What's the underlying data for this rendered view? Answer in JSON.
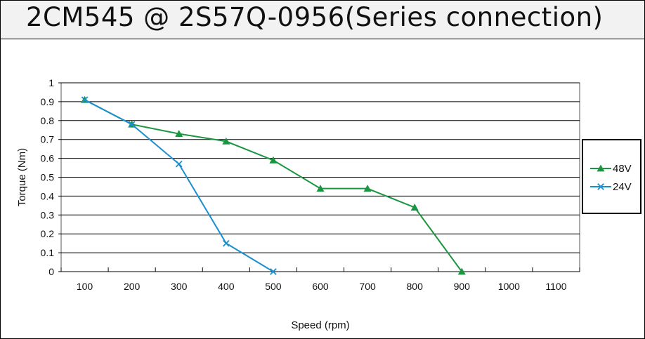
{
  "title": "2CM545 @ 2S57Q-0956(Series connection)",
  "colors": {
    "s48": "#1a9640",
    "s24": "#1a8fd0",
    "grid": "#000000",
    "title_bg": "#f2f2f2"
  },
  "chart_data": {
    "type": "line",
    "xlabel": "Speed (rpm)",
    "ylabel": "Torque (Nm)",
    "x_ticks": [
      100,
      200,
      300,
      400,
      500,
      600,
      700,
      800,
      900,
      1000,
      1100
    ],
    "y_ticks": [
      0,
      0.1,
      0.2,
      0.3,
      0.4,
      0.5,
      0.6,
      0.7,
      0.8,
      0.9,
      1
    ],
    "xlim": [
      50,
      1150
    ],
    "ylim": [
      0,
      1
    ],
    "grid": "horizontal",
    "legend_position": "right",
    "series": [
      {
        "name": "48V",
        "marker": "triangle",
        "color": "#1a9640",
        "x": [
          100,
          200,
          300,
          400,
          500,
          600,
          700,
          800,
          900
        ],
        "y": [
          0.91,
          0.78,
          0.73,
          0.69,
          0.59,
          0.44,
          0.44,
          0.34,
          0
        ]
      },
      {
        "name": "24V",
        "marker": "x",
        "color": "#1a8fd0",
        "x": [
          100,
          200,
          300,
          400,
          500
        ],
        "y": [
          0.91,
          0.78,
          0.57,
          0.15,
          0
        ]
      }
    ]
  }
}
